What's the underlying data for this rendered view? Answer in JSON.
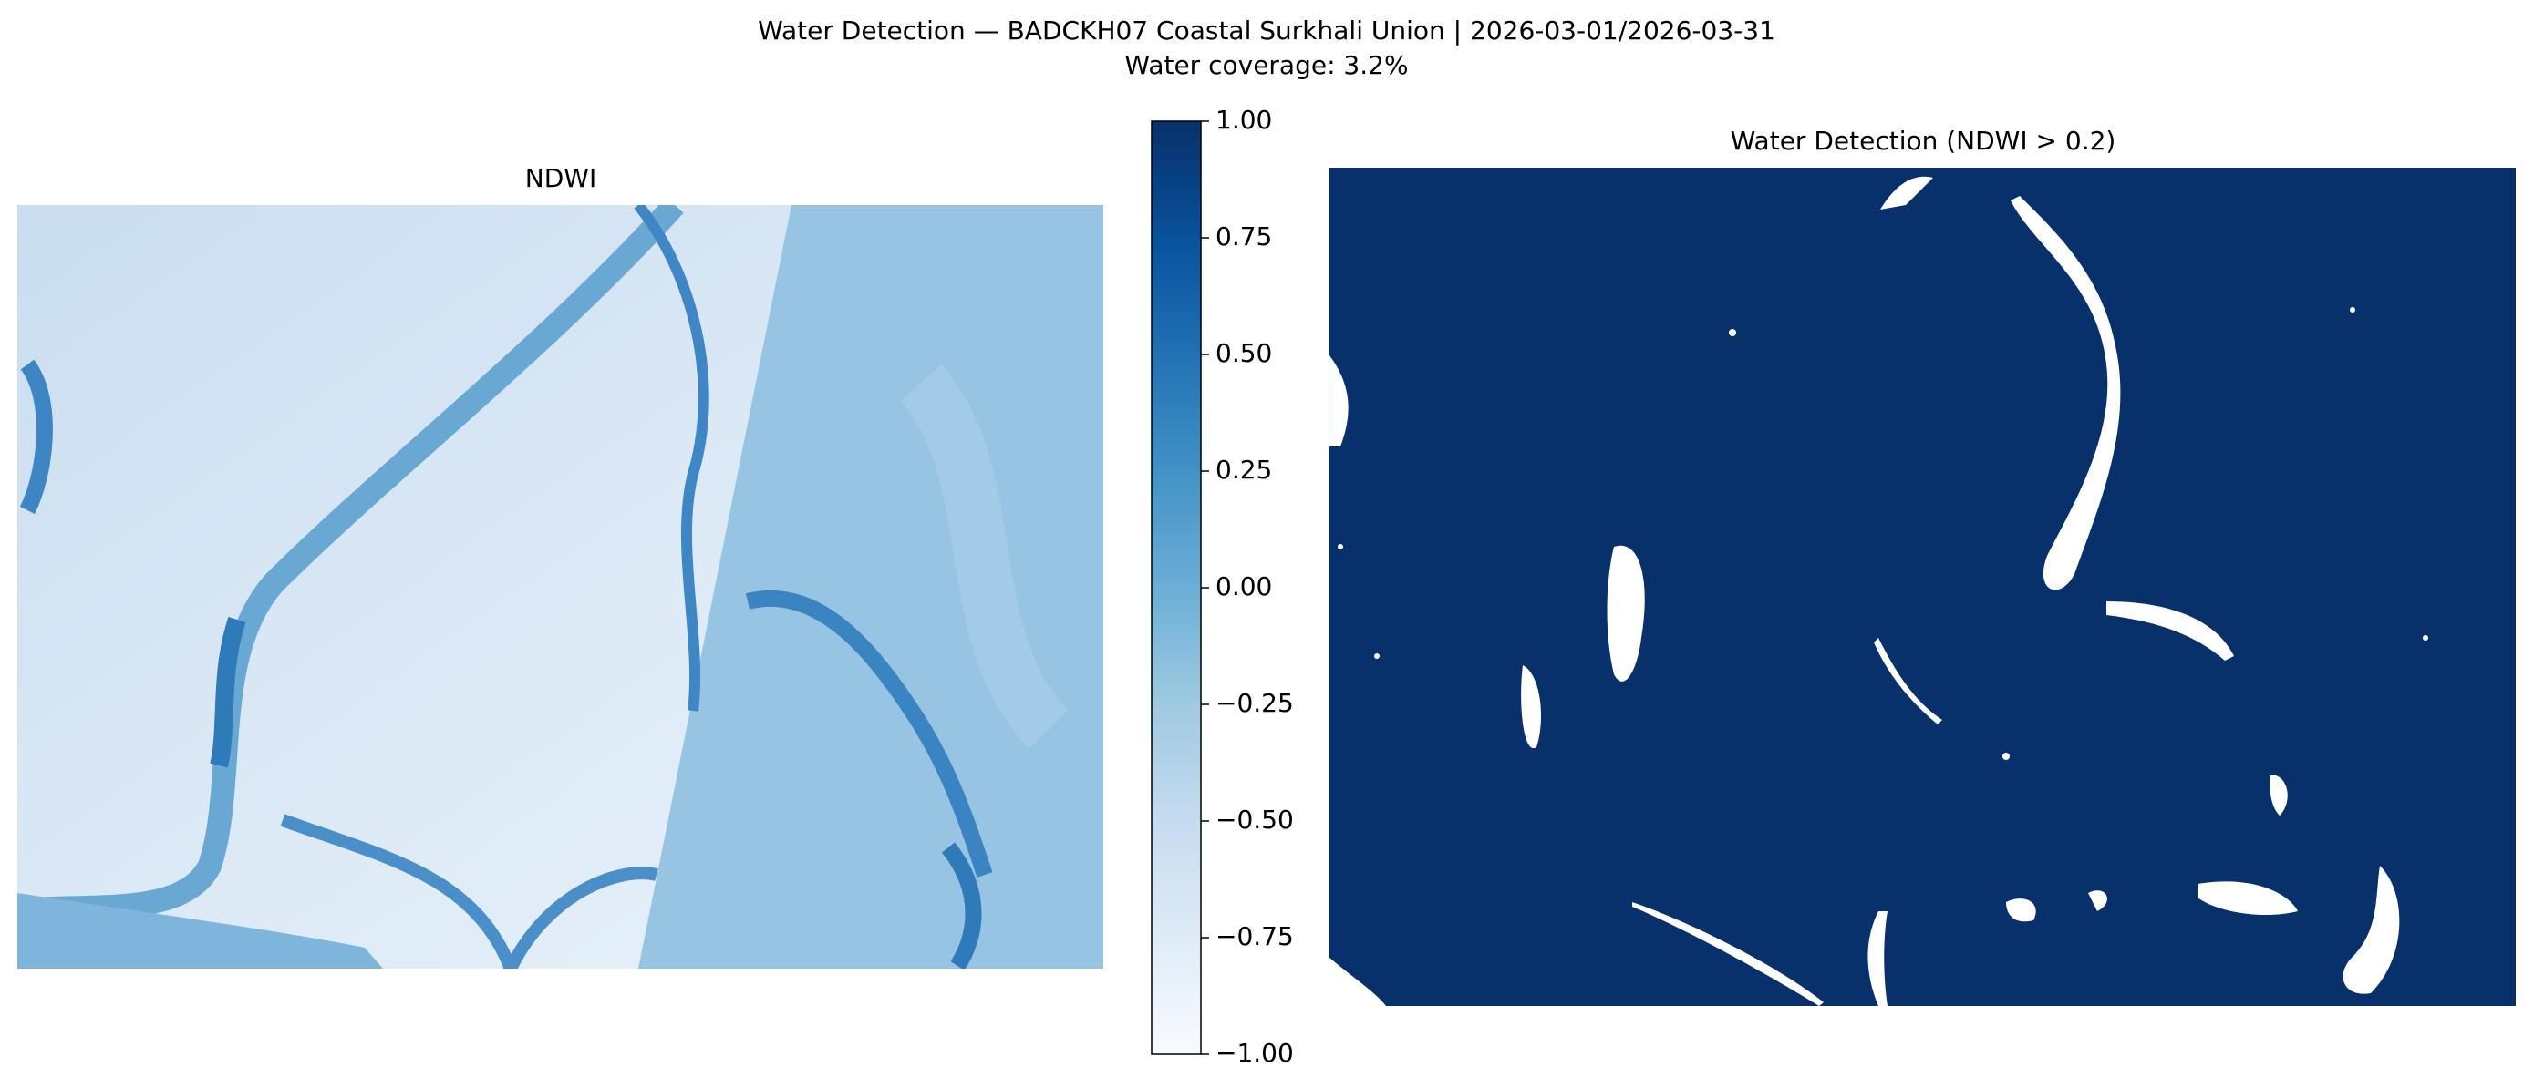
{
  "title": "Water Detection — BADCKH07 Coastal Surkhali Union | 2026-03-01/2026-03-31",
  "subtitle": "Water coverage: 3.2%",
  "panels": [
    {
      "title": "NDWI"
    },
    {
      "title": "Water Detection (NDWI > 0.2)"
    }
  ],
  "colorbar": {
    "lim": [
      -1,
      1
    ],
    "ticks": [
      {
        "value": 1,
        "label": "1.00"
      },
      {
        "value": 0.75,
        "label": "0.75"
      },
      {
        "value": 0.5,
        "label": "0.50"
      },
      {
        "value": 0.25,
        "label": "0.25"
      },
      {
        "value": 0,
        "label": "0.00"
      },
      {
        "value": -0.25,
        "label": "−0.25"
      },
      {
        "value": -0.5,
        "label": "−0.50"
      },
      {
        "value": -0.75,
        "label": "−0.75"
      },
      {
        "value": -1,
        "label": "−1.00"
      }
    ]
  }
}
